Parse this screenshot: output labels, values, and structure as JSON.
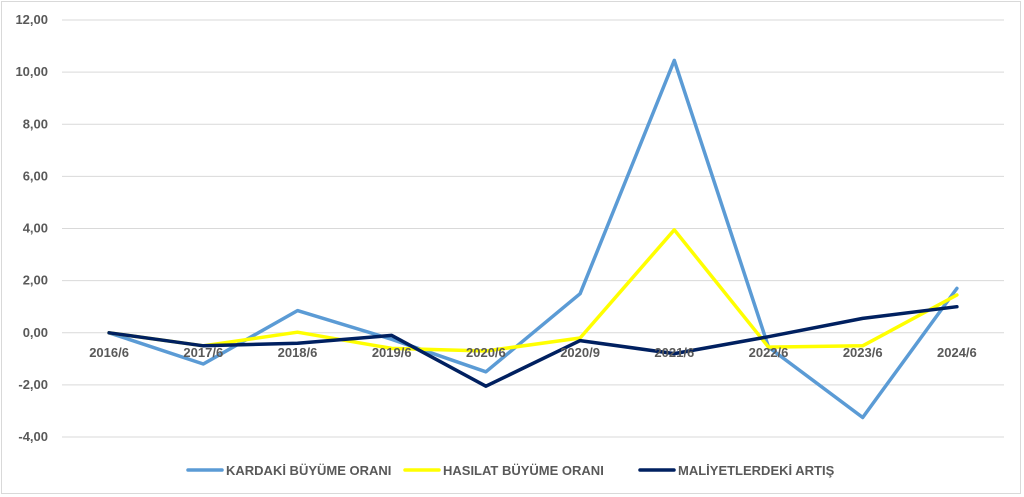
{
  "chart_data": {
    "type": "line",
    "title": "",
    "xlabel": "",
    "ylabel": "",
    "categories": [
      "2016/6",
      "2017/6",
      "2018/6",
      "2019/6",
      "2020/6",
      "2020/9",
      "2021/6",
      "2022/6",
      "2023/6",
      "2024/6"
    ],
    "ylim": [
      -4,
      12
    ],
    "yticks": [
      "-4,00",
      "-2,00",
      "0,00",
      "2,00",
      "4,00",
      "6,00",
      "8,00",
      "10,00",
      "12,00"
    ],
    "ytick_values": [
      -4,
      -2,
      0,
      2,
      4,
      6,
      8,
      10,
      12
    ],
    "grid": true,
    "legend_position": "bottom",
    "series": [
      {
        "name": "KARDAKİ BÜYÜME ORANI",
        "color": "#5b9bd5",
        "values": [
          0.0,
          -1.2,
          0.85,
          -0.25,
          -1.5,
          1.5,
          10.45,
          -0.55,
          -3.25,
          1.7
        ]
      },
      {
        "name": "HASILAT BÜYÜME ORANI",
        "color": "#ffff00",
        "values": [
          0.0,
          -0.5,
          0.02,
          -0.6,
          -0.7,
          -0.2,
          3.95,
          -0.55,
          -0.5,
          1.45
        ]
      },
      {
        "name": "MALİYETLERDEKİ ARTIŞ",
        "color": "#002060",
        "values": [
          0.0,
          -0.5,
          -0.4,
          -0.1,
          -2.05,
          -0.3,
          -0.8,
          -0.15,
          0.55,
          1.0
        ]
      }
    ]
  }
}
